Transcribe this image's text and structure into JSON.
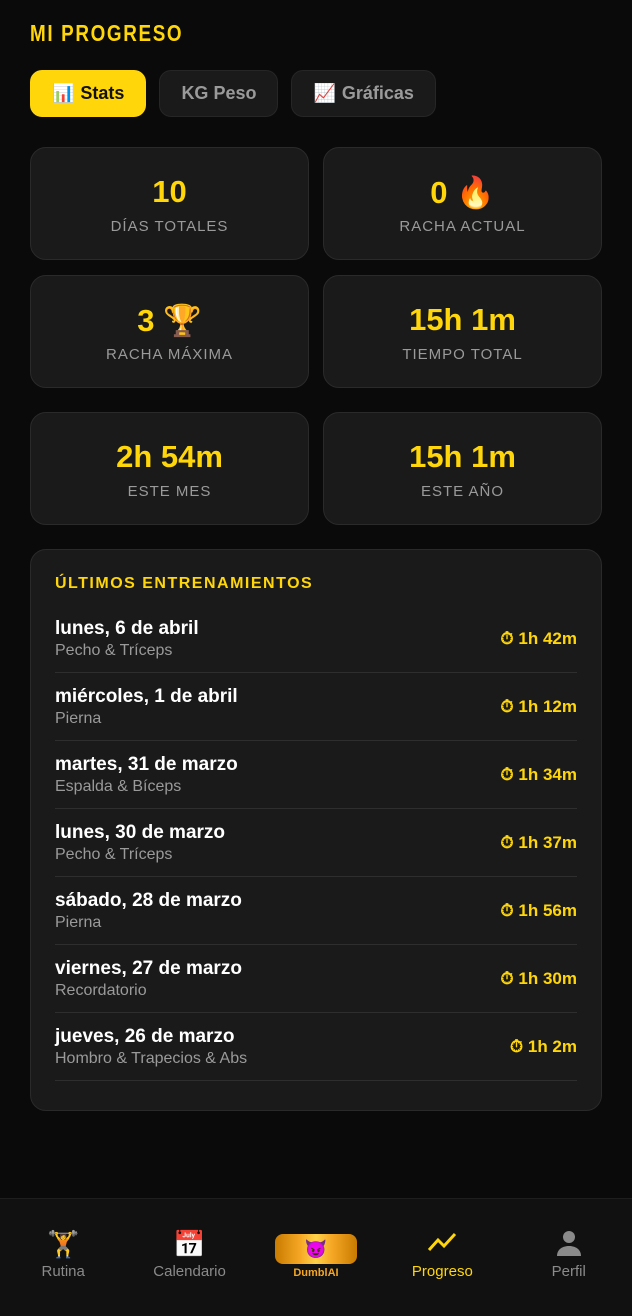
{
  "title": "MI PROGRESO",
  "tabs": [
    {
      "icon": "📊",
      "label": "Stats",
      "active": true
    },
    {
      "icon": "",
      "label": "KG Peso"
    },
    {
      "icon": "📈",
      "label": "Gráficas"
    }
  ],
  "stats": [
    {
      "value": "10",
      "emoji": "",
      "label": "DÍAS TOTALES"
    },
    {
      "value": "0",
      "emoji": "🔥",
      "label": "RACHA ACTUAL"
    },
    {
      "value": "3",
      "emoji": "🏆",
      "label": "RACHA MÁXIMA"
    },
    {
      "value": "15h 1m",
      "emoji": "",
      "label": "TIEMPO TOTAL"
    },
    {
      "value": "2h 54m",
      "emoji": "",
      "label": "ESTE MES"
    },
    {
      "value": "15h 1m",
      "emoji": "",
      "label": "ESTE AÑO"
    }
  ],
  "recent": {
    "heading": "ÚLTIMOS ENTRENAMIENTOS",
    "items": [
      {
        "date": "lunes, 6 de abril",
        "workout": "Pecho & Tríceps",
        "duration": "1h 42m"
      },
      {
        "date": "miércoles, 1 de abril",
        "workout": "Pierna",
        "duration": "1h 12m"
      },
      {
        "date": "martes, 31 de marzo",
        "workout": "Espalda & Bíceps",
        "duration": "1h 34m"
      },
      {
        "date": "lunes, 30 de marzo",
        "workout": "Pecho & Tríceps",
        "duration": "1h 37m"
      },
      {
        "date": "sábado, 28 de marzo",
        "workout": "Pierna",
        "duration": "1h 56m"
      },
      {
        "date": "viernes, 27 de marzo",
        "workout": "Recordatorio",
        "duration": "1h 30m"
      },
      {
        "date": "jueves, 26 de marzo",
        "workout": "Hombro & Trapecios & Abs",
        "duration": "1h 2m"
      }
    ]
  },
  "nav": {
    "rutina": "Rutina",
    "calendario": "Calendario",
    "logo": "DumblAI",
    "progreso": "Progreso",
    "perfil": "Perfil"
  },
  "colors": {
    "accent": "#ffd60a",
    "background": "#0a0a0a",
    "card": "#1a1a1a"
  }
}
